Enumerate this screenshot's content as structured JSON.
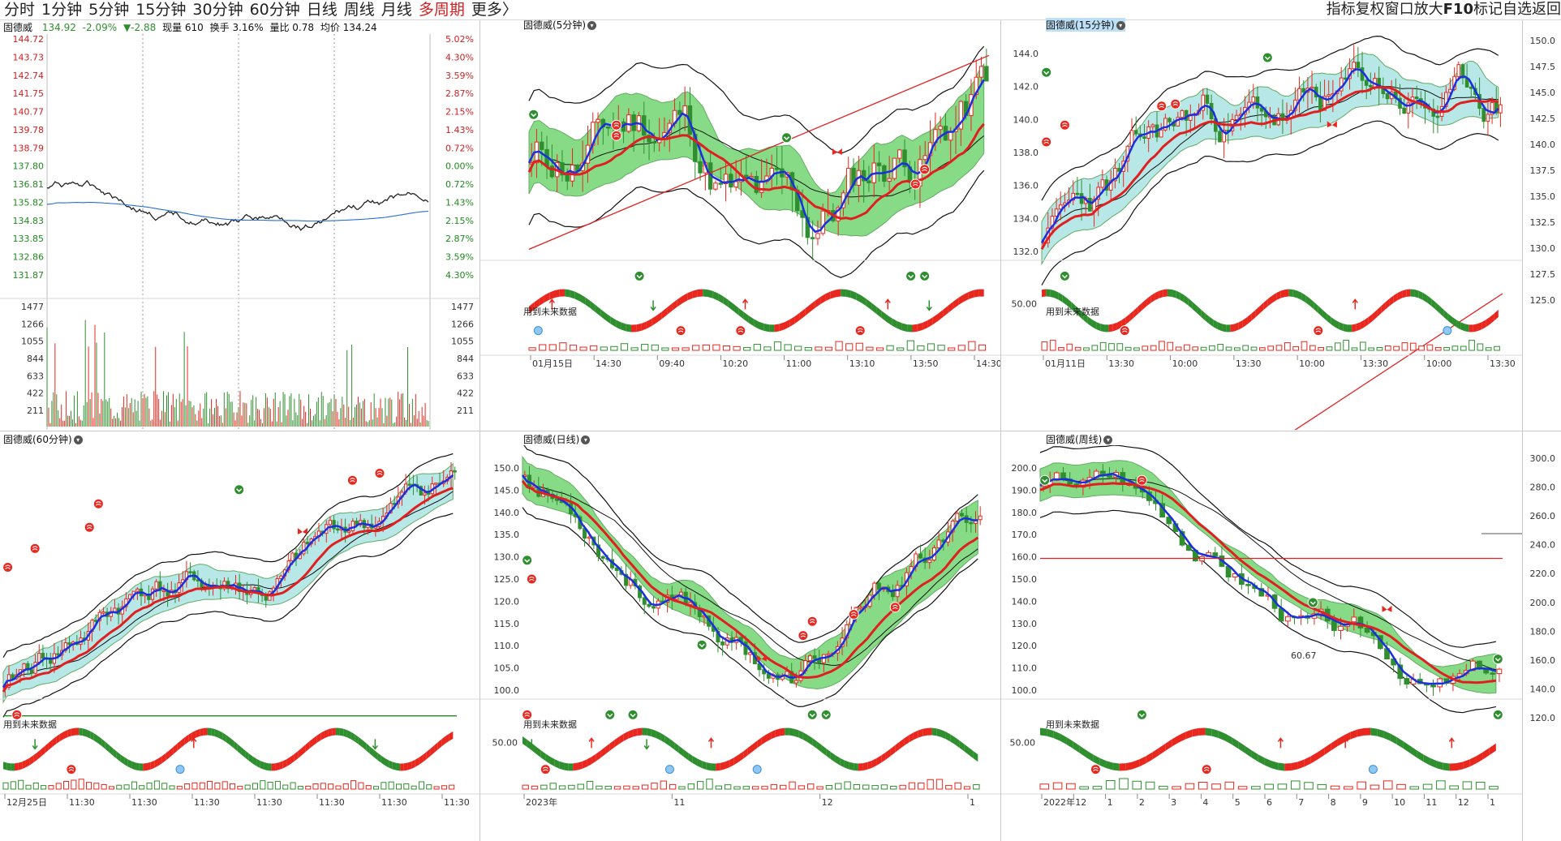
{
  "toolbar": {
    "periods": [
      "分时",
      "1分钟",
      "5分钟",
      "15分钟",
      "30分钟",
      "60分钟",
      "日线",
      "周线",
      "月线",
      "多周期",
      "更多〉"
    ],
    "active_period": "多周期",
    "tools": [
      "指标",
      "复权",
      "窗口",
      "放大",
      "F10",
      "标记",
      "自选",
      "返回"
    ]
  },
  "colors": {
    "up": "#e8281f",
    "down": "#2f8f2f",
    "avg_line": "#2a6fd0",
    "price_line": "#222222",
    "grid": "#c8c8c8"
  },
  "panels": {
    "intraday": {
      "header": {
        "name": "固德威",
        "price": "134.92",
        "change_pct": "-2.09%",
        "change": "▼-2.88",
        "volume_label": "现量",
        "volume": "610",
        "turnover_label": "换手",
        "turnover": "3.16%",
        "vol_ratio_label": "量比",
        "vol_ratio": "0.78",
        "avg_label": "均价",
        "avg": "134.24"
      },
      "price_axis": [
        "144.72",
        "143.73",
        "142.74",
        "141.75",
        "140.77",
        "139.78",
        "138.79",
        "137.80",
        "136.81",
        "135.82",
        "134.83",
        "133.85",
        "132.86",
        "131.87"
      ],
      "pct_axis": [
        "5.02%",
        "4.30%",
        "3.59%",
        "2.87%",
        "2.15%",
        "1.43%",
        "0.72%",
        "0.00%",
        "0.72%",
        "1.43%",
        "2.15%",
        "2.87%",
        "3.59%",
        "4.30%"
      ],
      "volume_axis": [
        "1477",
        "1266",
        "1055",
        "844",
        "633",
        "422",
        "211"
      ],
      "volume_axis_right": [
        "1477",
        "1266",
        "1055",
        "844",
        "633",
        "422",
        "211"
      ]
    },
    "min5": {
      "title": "固德威(5分钟)",
      "future_note": "用到未来数据",
      "time_labels": [
        "01月15日",
        "14:30",
        "09:40",
        "10:20",
        "11:00",
        "13:10",
        "13:50",
        "14:30"
      ]
    },
    "min15": {
      "title": "固德威(15分钟)",
      "future_note": "用到未来数据",
      "price_axis": [
        "144.0",
        "142.0",
        "140.0",
        "138.0",
        "136.0",
        "134.0",
        "132.0"
      ],
      "right_axis": [
        "150.0",
        "147.5",
        "145.0",
        "142.5",
        "140.0",
        "137.5",
        "135.0",
        "132.5",
        "130.0",
        "127.5",
        "125.0"
      ],
      "osc_level": "50.00",
      "time_labels": [
        "01月11日",
        "13:30",
        "10:00",
        "13:30",
        "10:00",
        "13:30",
        "10:00",
        "13:30"
      ]
    },
    "min60": {
      "title": "固德威(60分钟)",
      "future_note": "用到未来数据",
      "time_labels": [
        "12月25日",
        "11:30",
        "11:30",
        "11:30",
        "11:30",
        "11:30",
        "11:30",
        "11:30"
      ]
    },
    "daily": {
      "title": "固德威(日线)",
      "future_note": "用到未来数据",
      "price_axis": [
        "150.0",
        "145.0",
        "140.0",
        "135.0",
        "130.0",
        "125.0",
        "120.0",
        "115.0",
        "110.0",
        "105.0",
        "100.0"
      ],
      "osc_level": "50.00",
      "time_labels": [
        "2023年",
        "11",
        "12",
        "1"
      ]
    },
    "weekly": {
      "title": "固德威(周线)",
      "future_note": "用到未来数据",
      "price_axis": [
        "200.0",
        "190.0",
        "180.0",
        "170.0",
        "160.0",
        "150.0",
        "140.0",
        "130.0",
        "120.0",
        "110.0",
        "100.0"
      ],
      "right_axis": [
        "300.0",
        "280.0",
        "260.0",
        "240.0",
        "220.0",
        "200.0",
        "180.0",
        "160.0",
        "140.0",
        "120.0"
      ],
      "marker_value": "60.67",
      "osc_level": "50.00",
      "time_labels": [
        "2022年",
        "12",
        "1",
        "2",
        "3",
        "4",
        "5",
        "6",
        "7",
        "8",
        "9",
        "10",
        "11",
        "12",
        "1"
      ]
    }
  }
}
